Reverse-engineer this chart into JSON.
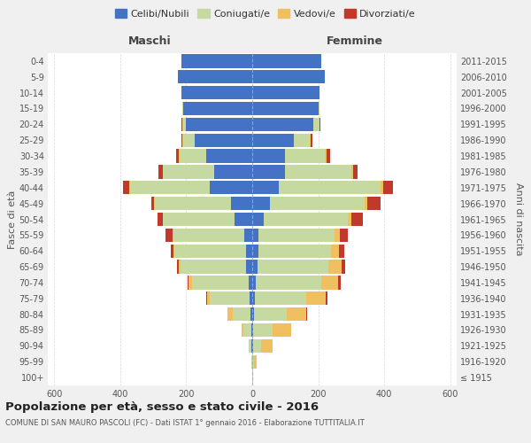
{
  "age_groups": [
    "100+",
    "95-99",
    "90-94",
    "85-89",
    "80-84",
    "75-79",
    "70-74",
    "65-69",
    "60-64",
    "55-59",
    "50-54",
    "45-49",
    "40-44",
    "35-39",
    "30-34",
    "25-29",
    "20-24",
    "15-19",
    "10-14",
    "5-9",
    "0-4"
  ],
  "birth_years": [
    "≤ 1915",
    "1916-1920",
    "1921-1925",
    "1926-1930",
    "1931-1935",
    "1936-1940",
    "1941-1945",
    "1946-1950",
    "1951-1955",
    "1956-1960",
    "1961-1965",
    "1966-1970",
    "1971-1975",
    "1976-1980",
    "1981-1985",
    "1986-1990",
    "1991-1995",
    "1996-2000",
    "2001-2005",
    "2006-2010",
    "2011-2015"
  ],
  "males": {
    "celibe": [
      0,
      0,
      2,
      3,
      5,
      8,
      12,
      18,
      20,
      25,
      55,
      65,
      130,
      115,
      140,
      175,
      200,
      210,
      215,
      225,
      215
    ],
    "coniugato": [
      1,
      2,
      8,
      25,
      55,
      120,
      170,
      200,
      215,
      215,
      215,
      230,
      240,
      155,
      80,
      35,
      10,
      3,
      0,
      0,
      0
    ],
    "vedovo": [
      0,
      0,
      2,
      5,
      15,
      10,
      10,
      5,
      5,
      2,
      2,
      2,
      2,
      2,
      2,
      2,
      2,
      0,
      0,
      0,
      0
    ],
    "divorziato": [
      0,
      0,
      0,
      0,
      0,
      2,
      5,
      5,
      8,
      20,
      15,
      10,
      20,
      12,
      8,
      3,
      2,
      0,
      0,
      0,
      0
    ]
  },
  "females": {
    "nubile": [
      0,
      1,
      2,
      3,
      5,
      8,
      10,
      15,
      18,
      20,
      35,
      55,
      80,
      100,
      100,
      125,
      185,
      200,
      205,
      220,
      210
    ],
    "coniugata": [
      2,
      5,
      25,
      60,
      100,
      155,
      200,
      215,
      220,
      230,
      255,
      285,
      310,
      200,
      120,
      50,
      18,
      5,
      0,
      0,
      0
    ],
    "vedova": [
      2,
      8,
      35,
      55,
      60,
      60,
      50,
      40,
      25,
      15,
      10,
      10,
      8,
      5,
      5,
      3,
      2,
      0,
      0,
      0,
      0
    ],
    "divorziata": [
      0,
      0,
      0,
      0,
      2,
      5,
      8,
      12,
      15,
      25,
      35,
      40,
      30,
      15,
      10,
      5,
      2,
      0,
      0,
      0,
      0
    ]
  },
  "colors": {
    "celibe": "#4472C4",
    "coniugato": "#c5d9a0",
    "vedovo": "#f0c060",
    "divorziato": "#c0392b"
  },
  "xlim": 620,
  "xtick_vals": [
    -600,
    -400,
    -200,
    0,
    200,
    400,
    600
  ],
  "title": "Popolazione per età, sesso e stato civile - 2016",
  "subtitle": "COMUNE DI SAN MAURO PASCOLI (FC) - Dati ISTAT 1° gennaio 2016 - Elaborazione TUTTITALIA.IT",
  "ylabel_left": "Fasce di età",
  "ylabel_right": "Anni di nascita",
  "xlabel_left": "Maschi",
  "xlabel_right": "Femmine",
  "bg_color": "#f0f0f0",
  "plot_bg": "#ffffff",
  "legend_labels": [
    "Celibi/Nubili",
    "Coniugati/e",
    "Vedovi/e",
    "Divorziati/e"
  ]
}
